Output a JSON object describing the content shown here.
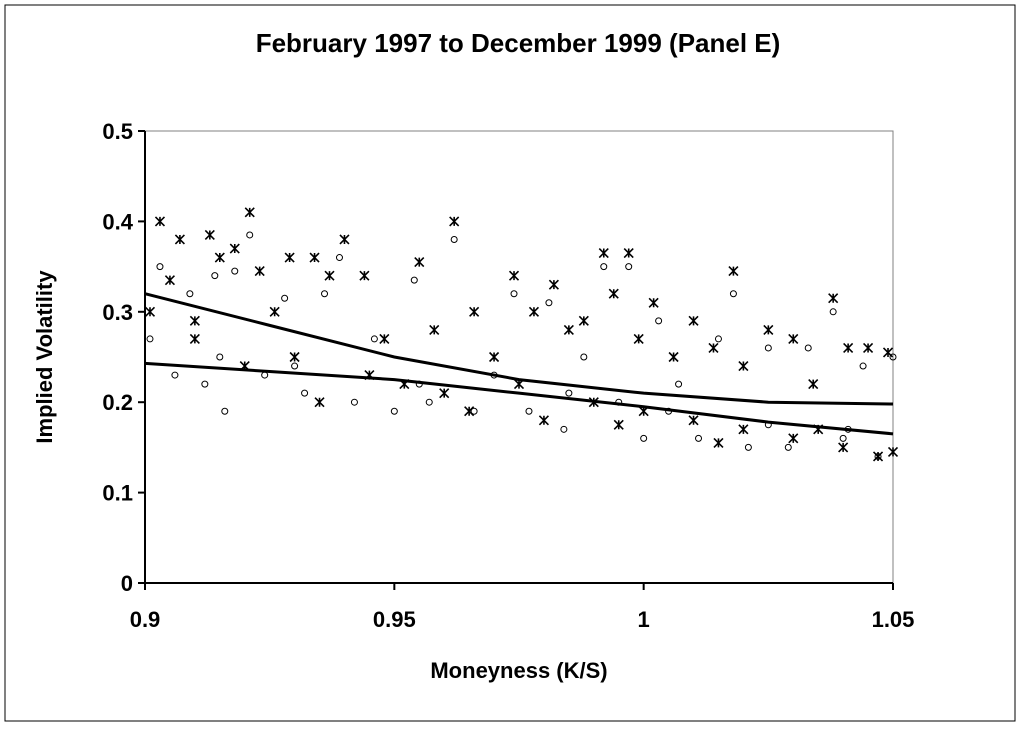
{
  "chart_data": {
    "type": "scatter",
    "title": "February 1997 to December 1999 (Panel E)",
    "x_label": "Moneyness (K/S)",
    "y_label": "Implied Volatility",
    "xlim": [
      0.9,
      1.05
    ],
    "xticks": [
      0.9,
      0.95,
      1,
      1.05
    ],
    "ylim": [
      0,
      0.5
    ],
    "yticks": [
      0,
      0.1,
      0.2,
      0.3,
      0.4,
      0.5
    ],
    "series": [
      {
        "marker": "asterisk",
        "color": "#000000",
        "x": [
          0.901,
          0.903,
          0.905,
          0.907,
          0.91,
          0.913,
          0.915,
          0.918,
          0.921,
          0.923,
          0.926,
          0.929,
          0.934,
          0.937,
          0.94,
          0.944,
          0.948,
          0.952,
          0.955,
          0.958,
          0.962,
          0.966,
          0.97,
          0.974,
          0.978,
          0.982,
          0.985,
          0.988,
          0.992,
          0.994,
          0.997,
          0.999,
          1.002,
          1.006,
          1.01,
          1.014,
          1.018,
          1.02,
          1.025,
          1.03,
          1.034,
          1.038,
          1.041,
          1.045,
          1.049,
          0.93,
          0.945,
          0.96,
          0.975,
          0.99,
          1.0,
          1.01,
          1.02,
          1.03,
          1.04,
          1.047,
          0.91,
          0.92,
          0.935,
          0.965,
          0.98,
          0.995,
          1.015,
          1.035,
          1.05
        ],
        "values": [
          0.3,
          0.4,
          0.335,
          0.38,
          0.29,
          0.385,
          0.36,
          0.37,
          0.41,
          0.345,
          0.3,
          0.36,
          0.36,
          0.34,
          0.38,
          0.34,
          0.27,
          0.22,
          0.355,
          0.28,
          0.4,
          0.3,
          0.25,
          0.34,
          0.3,
          0.33,
          0.28,
          0.29,
          0.365,
          0.32,
          0.365,
          0.27,
          0.31,
          0.25,
          0.29,
          0.26,
          0.345,
          0.24,
          0.28,
          0.27,
          0.22,
          0.315,
          0.26,
          0.26,
          0.255,
          0.25,
          0.23,
          0.21,
          0.22,
          0.2,
          0.19,
          0.18,
          0.17,
          0.16,
          0.15,
          0.14,
          0.27,
          0.24,
          0.2,
          0.19,
          0.18,
          0.175,
          0.155,
          0.17,
          0.145
        ]
      },
      {
        "marker": "circle",
        "color": "#000000",
        "x": [
          0.901,
          0.903,
          0.906,
          0.909,
          0.912,
          0.914,
          0.916,
          0.918,
          0.921,
          0.924,
          0.928,
          0.932,
          0.936,
          0.939,
          0.942,
          0.946,
          0.95,
          0.954,
          0.957,
          0.962,
          0.966,
          0.97,
          0.974,
          0.977,
          0.981,
          0.984,
          0.988,
          0.992,
          0.995,
          0.997,
          1.0,
          1.003,
          1.007,
          1.011,
          1.015,
          1.018,
          1.021,
          1.025,
          1.029,
          1.033,
          1.038,
          1.041,
          1.044,
          1.047,
          1.05,
          0.915,
          0.93,
          0.955,
          0.985,
          1.005,
          1.025,
          1.04
        ],
        "values": [
          0.27,
          0.35,
          0.23,
          0.32,
          0.22,
          0.34,
          0.19,
          0.345,
          0.385,
          0.23,
          0.315,
          0.21,
          0.32,
          0.36,
          0.2,
          0.27,
          0.19,
          0.335,
          0.2,
          0.38,
          0.19,
          0.23,
          0.32,
          0.19,
          0.31,
          0.17,
          0.25,
          0.35,
          0.2,
          0.35,
          0.16,
          0.29,
          0.22,
          0.16,
          0.27,
          0.32,
          0.15,
          0.26,
          0.15,
          0.26,
          0.3,
          0.17,
          0.24,
          0.14,
          0.25,
          0.25,
          0.24,
          0.22,
          0.21,
          0.19,
          0.175,
          0.16
        ]
      },
      {
        "marker": "line",
        "color": "#000000",
        "x": [
          0.9,
          0.925,
          0.95,
          0.975,
          1.0,
          1.025,
          1.05
        ],
        "values": [
          0.32,
          0.285,
          0.25,
          0.225,
          0.21,
          0.2,
          0.198
        ]
      },
      {
        "marker": "line",
        "color": "#000000",
        "x": [
          0.9,
          0.925,
          0.95,
          0.975,
          1.0,
          1.025,
          1.05
        ],
        "values": [
          0.243,
          0.234,
          0.225,
          0.21,
          0.195,
          0.178,
          0.165
        ]
      }
    ]
  }
}
